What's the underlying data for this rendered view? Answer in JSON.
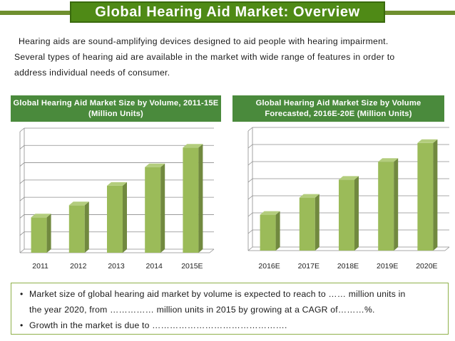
{
  "page": {
    "title": "Global Hearing Aid Market: Overview",
    "intro": [
      "Hearing aids are sound-amplifying devices designed to aid people with hearing impairment.",
      "Several types of hearing aid are available in the market with wide range of features in order to",
      "address individual needs of consumer."
    ],
    "bullets": {
      "b1_line1": "Market size of global hearing aid market by volume is expected to reach to …… million units in",
      "b1_line2": "the year 2020, from …………… million units in 2015 by growing at a CAGR of………%.",
      "b2": "Growth in the market is due to ……………………………………….",
      "marker": "•"
    }
  },
  "colors": {
    "title_bg": "#4f8a16",
    "header_bg": "#4a8a3c",
    "bar_front": "#9bbb59",
    "bar_side": "#71893f",
    "bar_top": "#b3cd7d",
    "gridline": "#8c8c8c",
    "box_border": "#8fb04a"
  },
  "chart_data": [
    {
      "type": "bar",
      "title": "Global Hearing Aid Market Size by Volume, 2011-15E (Million Units)",
      "categories": [
        "2011",
        "2012",
        "2013",
        "2014",
        "2015E"
      ],
      "values": [
        3.8,
        5.1,
        7.2,
        9.2,
        11.3
      ],
      "ylim": [
        0,
        13
      ],
      "grid": true,
      "style": "3d"
    },
    {
      "type": "bar",
      "title": "Global Hearing Aid Market Size by Volume Forecasted, 2016E-20E (Million Units)",
      "categories": [
        "2016E",
        "2017E",
        "2018E",
        "2019E",
        "2020E"
      ],
      "values": [
        4.2,
        6.2,
        8.3,
        10.4,
        12.6
      ],
      "ylim": [
        0,
        14
      ],
      "grid": true,
      "style": "3d"
    }
  ]
}
